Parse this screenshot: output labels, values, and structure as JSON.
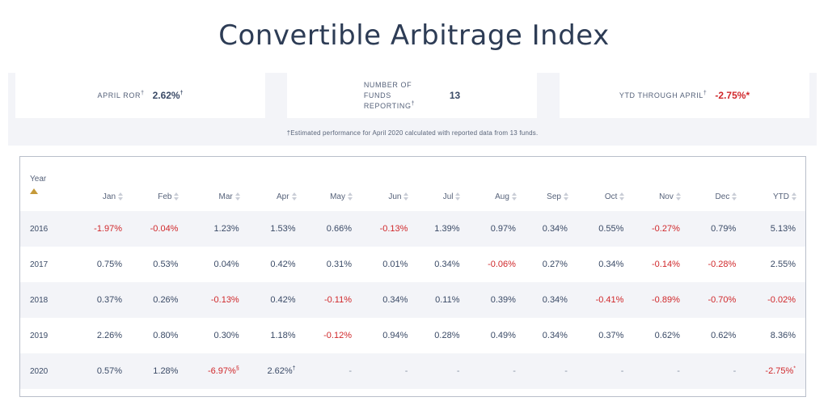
{
  "page": {
    "title": "Convertible Arbitrage Index"
  },
  "stats": {
    "april_ror": {
      "label": "APRIL ROR",
      "label_sup": "†",
      "value": "2.62%",
      "value_sup": "†"
    },
    "funds": {
      "label": "NUMBER OF FUNDS REPORTING",
      "label_sup": "†",
      "value": "13"
    },
    "ytd": {
      "label": "YTD THROUGH APRIL",
      "label_sup": "†",
      "value": "-2.75%*"
    },
    "note": "†Estimated performance for April 2020 calculated with reported data from 13 funds."
  },
  "table": {
    "year_header": "Year",
    "columns": [
      "Jan",
      "Feb",
      "Mar",
      "Apr",
      "May",
      "Jun",
      "Jul",
      "Aug",
      "Sep",
      "Oct",
      "Nov",
      "Dec",
      "YTD"
    ],
    "rows": [
      {
        "year": "2016",
        "values": [
          "-1.97%",
          "-0.04%",
          "1.23%",
          "1.53%",
          "0.66%",
          "-0.13%",
          "1.39%",
          "0.97%",
          "0.34%",
          "0.55%",
          "-0.27%",
          "0.79%",
          "5.13%"
        ]
      },
      {
        "year": "2017",
        "values": [
          "0.75%",
          "0.53%",
          "0.04%",
          "0.42%",
          "0.31%",
          "0.01%",
          "0.34%",
          "-0.06%",
          "0.27%",
          "0.34%",
          "-0.14%",
          "-0.28%",
          "2.55%"
        ]
      },
      {
        "year": "2018",
        "values": [
          "0.37%",
          "0.26%",
          "-0.13%",
          "0.42%",
          "-0.11%",
          "0.34%",
          "0.11%",
          "0.39%",
          "0.34%",
          "-0.41%",
          "-0.89%",
          "-0.70%",
          "-0.02%"
        ]
      },
      {
        "year": "2019",
        "values": [
          "2.26%",
          "0.80%",
          "0.30%",
          "1.18%",
          "-0.12%",
          "0.94%",
          "0.28%",
          "0.49%",
          "0.34%",
          "0.37%",
          "0.62%",
          "0.62%",
          "8.36%"
        ]
      },
      {
        "year": "2020",
        "values": [
          "0.57%",
          "1.28%",
          "-6.97%§",
          "2.62%†",
          "-",
          "-",
          "-",
          "-",
          "-",
          "-",
          "-",
          "-",
          "-2.75%*"
        ]
      }
    ]
  },
  "colors": {
    "negative": "#d0282b",
    "text": "#3a4a66",
    "band": "#f3f4f8",
    "sort_active": "#c59a3a"
  }
}
